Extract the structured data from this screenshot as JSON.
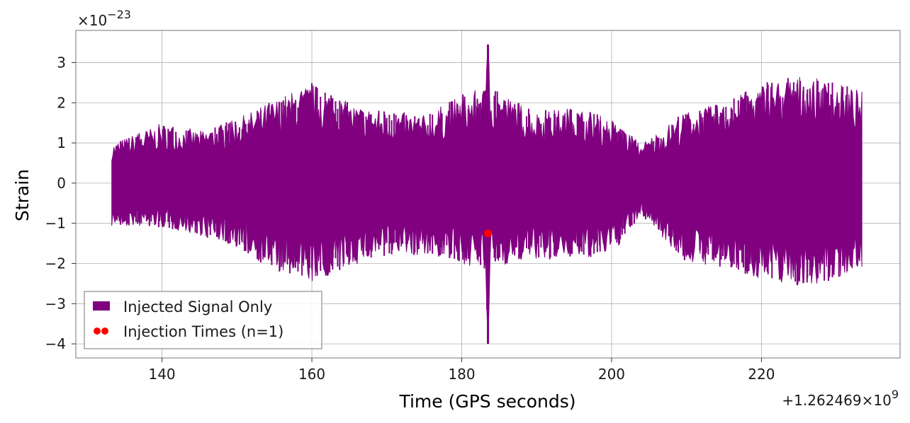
{
  "chart_data": {
    "type": "line",
    "xlabel": "Time (GPS seconds)",
    "ylabel": "Strain",
    "y_scale_text": "×10",
    "y_scale_exp": "−23",
    "x_offset_text": "+1.262469×10",
    "x_offset_exp": "9",
    "xlim": [
      128.5,
      238.5
    ],
    "ylim": [
      -4.35,
      3.8
    ],
    "x_ticks": [
      140,
      160,
      180,
      200,
      220
    ],
    "x_tick_labels": [
      "140",
      "160",
      "180",
      "200",
      "220"
    ],
    "y_ticks": [
      3,
      2,
      1,
      0,
      -1,
      -2,
      -3,
      -4
    ],
    "y_tick_labels": [
      "3",
      "2",
      "1",
      "0",
      "−1",
      "−2",
      "−3",
      "−4"
    ],
    "grid": true,
    "legend_position": "lower-left",
    "series": [
      {
        "name": "Injected Signal Only",
        "color": "#800080",
        "x_start": 133.3,
        "x_end": 233.4,
        "envelope": [
          [
            133.3,
            1.0,
            -1.1
          ],
          [
            140,
            1.5,
            -1.1
          ],
          [
            145,
            1.3,
            -1.3
          ],
          [
            150,
            1.6,
            -1.6
          ],
          [
            155,
            2.1,
            -2.2
          ],
          [
            160,
            2.5,
            -2.5
          ],
          [
            165,
            2.0,
            -2.1
          ],
          [
            170,
            1.8,
            -1.8
          ],
          [
            175,
            1.7,
            -1.8
          ],
          [
            180,
            2.2,
            -2.0
          ],
          [
            183.2,
            2.4,
            -2.2
          ],
          [
            183.5,
            3.45,
            -4.0
          ],
          [
            183.8,
            2.4,
            -2.1
          ],
          [
            190,
            1.8,
            -1.9
          ],
          [
            195,
            1.9,
            -1.9
          ],
          [
            200,
            1.6,
            -1.8
          ],
          [
            204,
            1.0,
            -0.8
          ],
          [
            210,
            1.8,
            -2.0
          ],
          [
            215,
            2.0,
            -2.1
          ],
          [
            220,
            2.5,
            -2.4
          ],
          [
            225,
            2.7,
            -2.6
          ],
          [
            230,
            2.5,
            -2.4
          ],
          [
            233.4,
            2.3,
            -2.1
          ]
        ]
      },
      {
        "name": "Injection Times (n=1)",
        "type": "scatter",
        "color": "#ff0000",
        "x": [
          183.5
        ],
        "y": [
          -1.25
        ]
      }
    ]
  }
}
